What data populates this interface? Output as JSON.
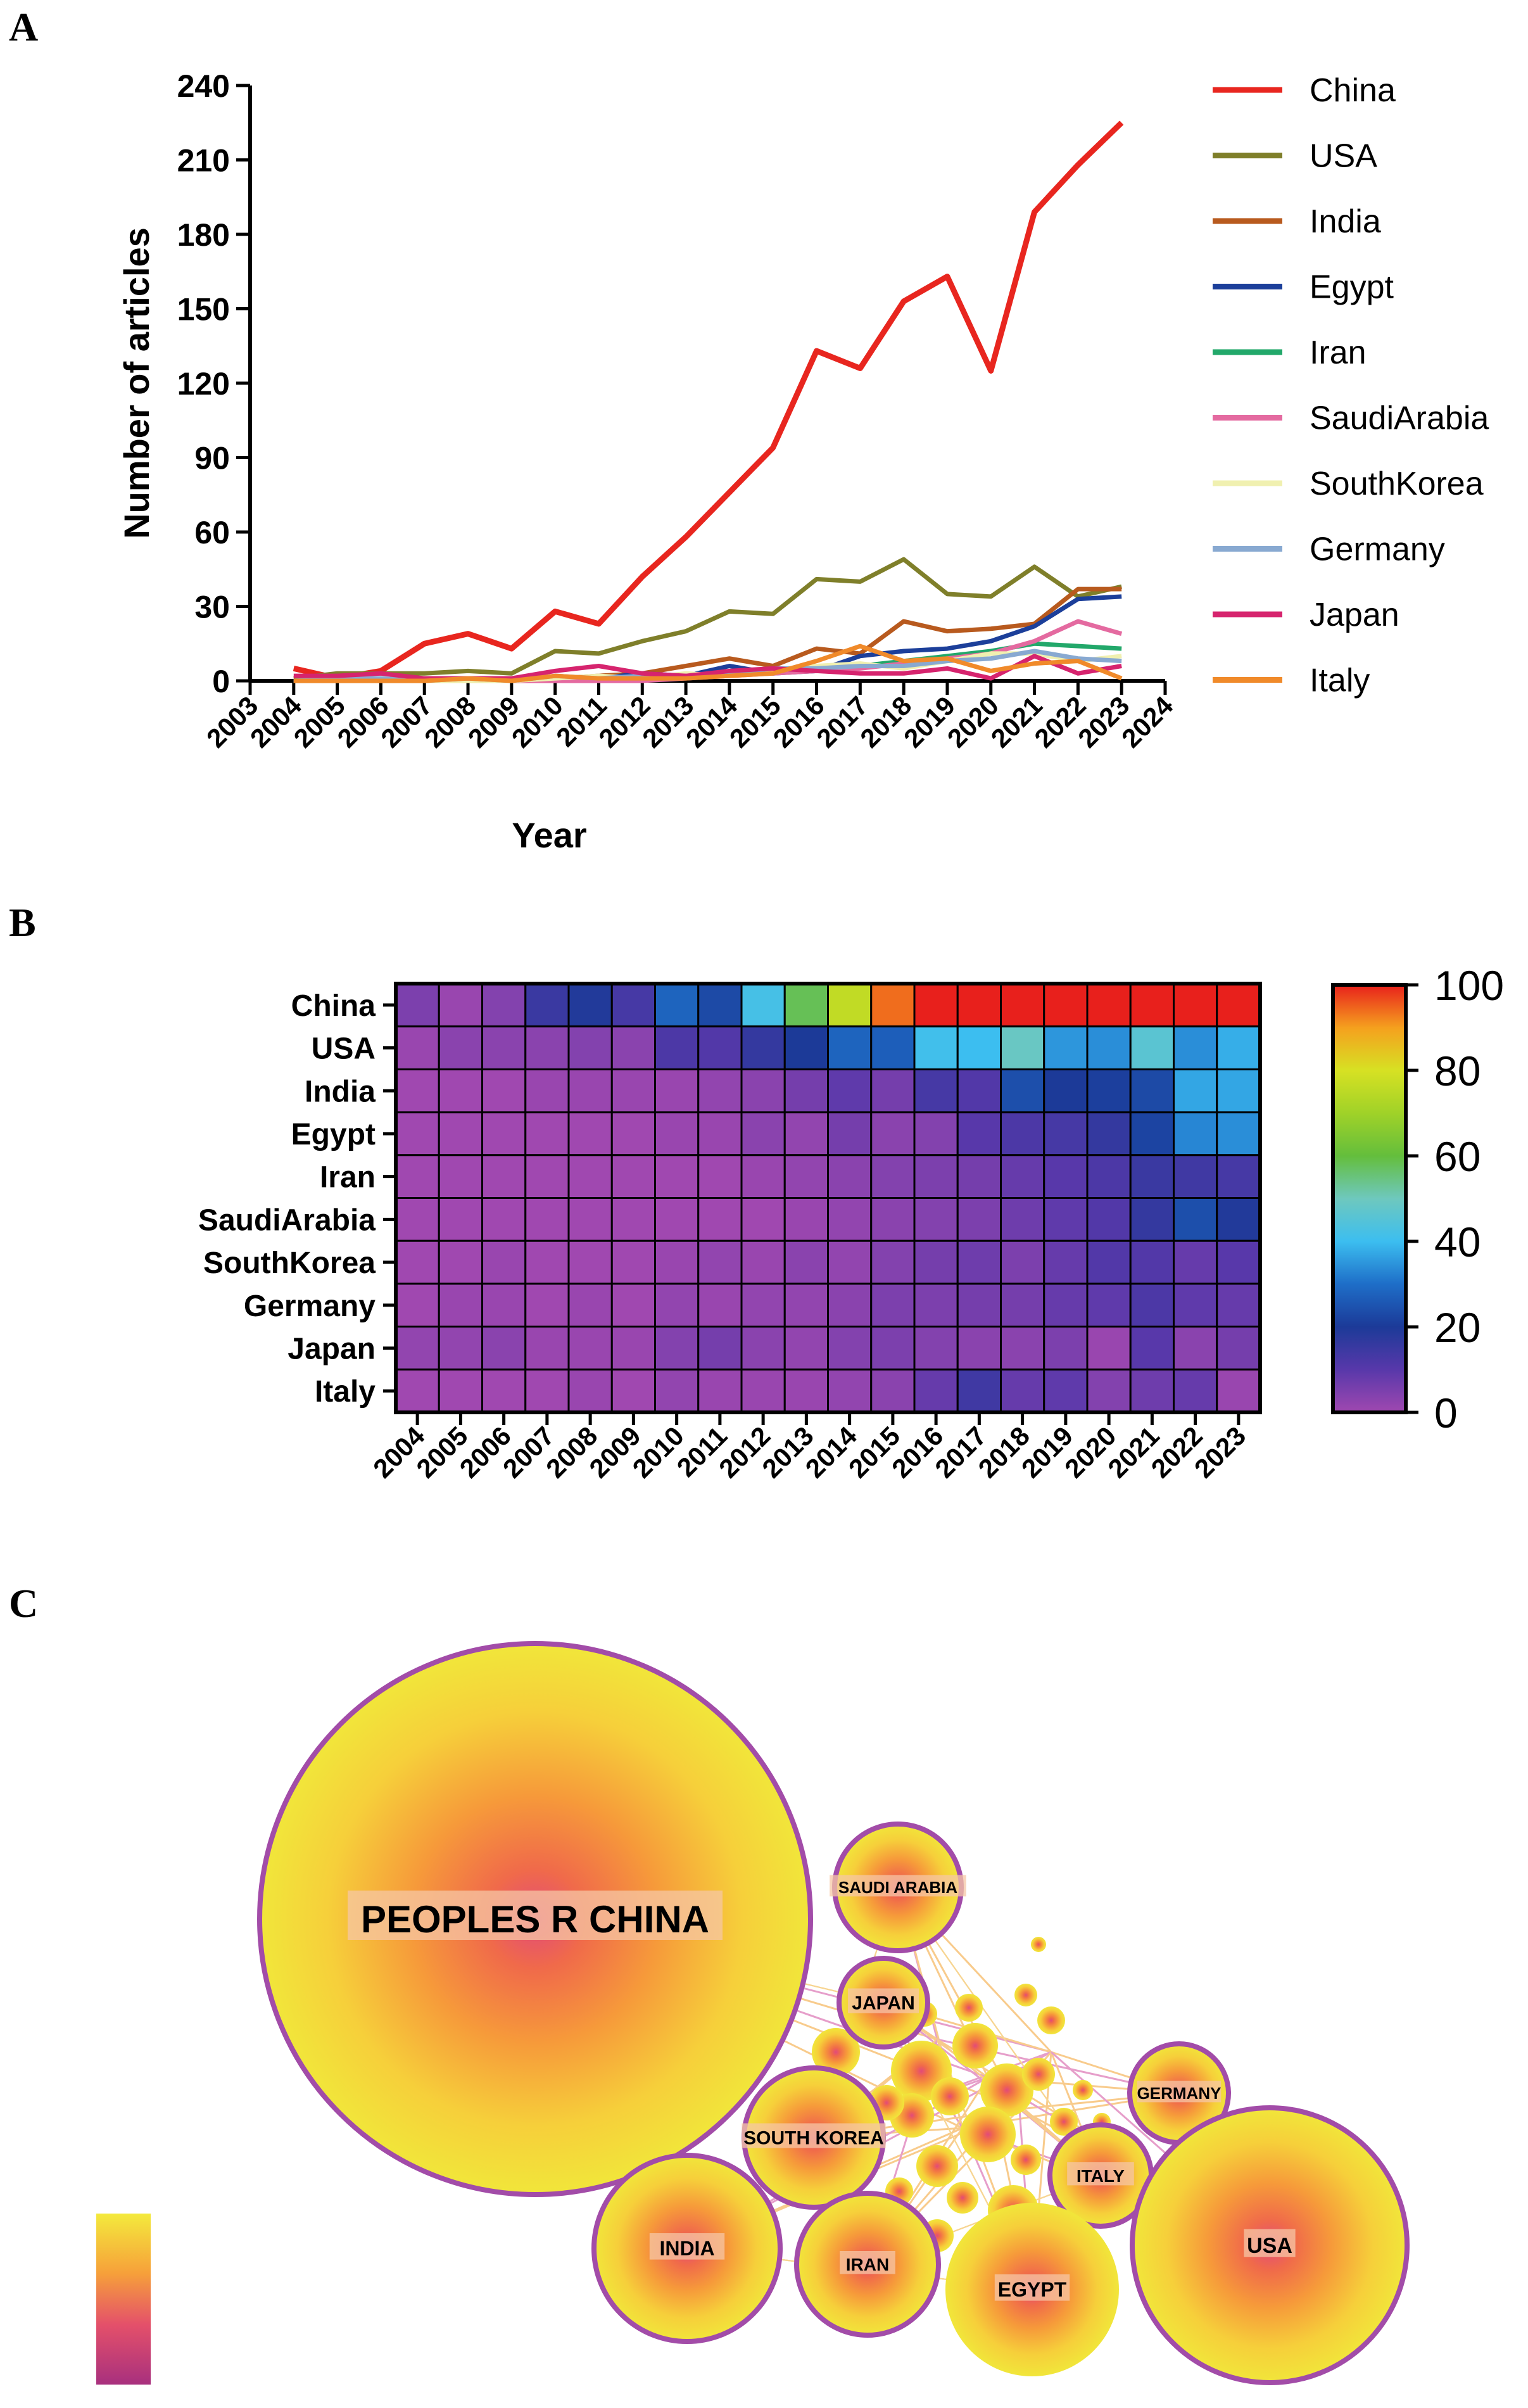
{
  "panels": {
    "a": "A",
    "b": "B",
    "c": "C"
  },
  "chart_data": [
    {
      "type": "line",
      "title": "",
      "xlabel": "Year",
      "ylabel": "Number of articles",
      "x_ticks": [
        "2003",
        "2004",
        "2005",
        "2006",
        "2007",
        "2008",
        "2009",
        "2010",
        "2011",
        "2012",
        "2013",
        "2014",
        "2015",
        "2016",
        "2017",
        "2018",
        "2019",
        "2020",
        "2021",
        "2022",
        "2023",
        "2024"
      ],
      "x": [
        2004,
        2005,
        2006,
        2007,
        2008,
        2009,
        2010,
        2011,
        2012,
        2013,
        2014,
        2015,
        2016,
        2017,
        2018,
        2019,
        2020,
        2021,
        2022,
        2023
      ],
      "xlim": [
        2003,
        2024
      ],
      "y_ticks": [
        0,
        30,
        60,
        90,
        120,
        150,
        180,
        210,
        240
      ],
      "ylim": [
        0,
        240
      ],
      "legend_position": "right",
      "series": [
        {
          "name": "China",
          "color": "#e8261f",
          "values": [
            5,
            1,
            4,
            15,
            19,
            13,
            28,
            23,
            42,
            58,
            76,
            94,
            133,
            126,
            153,
            163,
            125,
            189,
            208,
            225
          ]
        },
        {
          "name": "USA",
          "color": "#7f7f2a",
          "values": [
            1,
            3,
            3,
            3,
            4,
            3,
            12,
            11,
            16,
            20,
            28,
            27,
            41,
            40,
            49,
            35,
            34,
            46,
            34,
            38
          ]
        },
        {
          "name": "India",
          "color": "#b85a1e",
          "values": [
            0,
            0,
            0,
            1,
            1,
            1,
            1,
            2,
            3,
            6,
            9,
            6,
            13,
            11,
            24,
            20,
            21,
            23,
            37,
            37
          ]
        },
        {
          "name": "Egypt",
          "color": "#1c3f9a",
          "values": [
            0,
            0,
            0,
            0,
            0,
            0,
            1,
            1,
            3,
            2,
            6,
            3,
            4,
            10,
            12,
            13,
            16,
            22,
            33,
            34
          ]
        },
        {
          "name": "Iran",
          "color": "#22a86a",
          "values": [
            0,
            0,
            0,
            0,
            0,
            0,
            0,
            0,
            1,
            2,
            3,
            4,
            5,
            6,
            8,
            10,
            12,
            15,
            14,
            13
          ]
        },
        {
          "name": "SaudiArabia",
          "color": "#e46aa0",
          "values": [
            0,
            0,
            0,
            0,
            0,
            0,
            0,
            0,
            0,
            1,
            2,
            3,
            4,
            5,
            7,
            9,
            11,
            16,
            24,
            19
          ]
        },
        {
          "name": "SouthKorea",
          "color": "#f0f0b0",
          "values": [
            0,
            0,
            1,
            0,
            0,
            0,
            1,
            2,
            1,
            3,
            2,
            4,
            6,
            7,
            5,
            8,
            11,
            11,
            8,
            10
          ]
        },
        {
          "name": "Germany",
          "color": "#88a9d1",
          "values": [
            0,
            1,
            1,
            0,
            1,
            0,
            2,
            1,
            2,
            2,
            3,
            5,
            5,
            6,
            6,
            8,
            9,
            12,
            9,
            8
          ]
        },
        {
          "name": "Japan",
          "color": "#d6246e",
          "values": [
            2,
            2,
            3,
            1,
            1,
            1,
            4,
            6,
            3,
            2,
            4,
            5,
            4,
            3,
            3,
            5,
            1,
            10,
            3,
            6
          ]
        },
        {
          "name": "Italy",
          "color": "#f08a2a",
          "values": [
            0,
            0,
            0,
            0,
            1,
            0,
            2,
            1,
            1,
            1,
            2,
            3,
            8,
            14,
            8,
            9,
            4,
            7,
            8,
            1
          ]
        }
      ]
    },
    {
      "type": "heatmap",
      "rows": [
        "China",
        "USA",
        "India",
        "Egypt",
        "Iran",
        "SaudiArabia",
        "SouthKorea",
        "Germany",
        "Japan",
        "Italy"
      ],
      "columns": [
        "2004",
        "2005",
        "2006",
        "2007",
        "2008",
        "2009",
        "2010",
        "2011",
        "2012",
        "2013",
        "2014",
        "2015",
        "2016",
        "2017",
        "2018",
        "2019",
        "2020",
        "2021",
        "2022",
        "2023"
      ],
      "colorbar_ticks": [
        0,
        20,
        40,
        60,
        80,
        100
      ],
      "colorbar_range": [
        0,
        100
      ],
      "matrix": [
        [
          5,
          1,
          4,
          15,
          19,
          13,
          28,
          23,
          42,
          58,
          76,
          94,
          100,
          100,
          100,
          100,
          100,
          100,
          100,
          100
        ],
        [
          1,
          3,
          3,
          3,
          4,
          3,
          12,
          11,
          16,
          20,
          28,
          27,
          41,
          40,
          49,
          35,
          34,
          46,
          34,
          38
        ],
        [
          0,
          0,
          0,
          1,
          1,
          1,
          1,
          2,
          3,
          6,
          9,
          6,
          13,
          11,
          24,
          20,
          21,
          23,
          37,
          37
        ],
        [
          0,
          0,
          0,
          0,
          0,
          0,
          1,
          1,
          3,
          2,
          6,
          3,
          4,
          10,
          12,
          13,
          16,
          22,
          33,
          34
        ],
        [
          0,
          0,
          0,
          0,
          0,
          0,
          0,
          0,
          1,
          2,
          3,
          4,
          5,
          6,
          8,
          10,
          12,
          15,
          14,
          13
        ],
        [
          0,
          0,
          0,
          0,
          0,
          0,
          0,
          0,
          0,
          1,
          2,
          3,
          4,
          5,
          7,
          9,
          11,
          16,
          24,
          19
        ],
        [
          0,
          0,
          1,
          0,
          0,
          0,
          1,
          2,
          1,
          3,
          2,
          4,
          6,
          7,
          5,
          8,
          11,
          11,
          8,
          10
        ],
        [
          0,
          1,
          1,
          0,
          1,
          0,
          2,
          1,
          2,
          2,
          3,
          5,
          5,
          6,
          6,
          8,
          9,
          12,
          9,
          8
        ],
        [
          2,
          2,
          3,
          1,
          1,
          1,
          4,
          6,
          3,
          2,
          4,
          5,
          4,
          3,
          3,
          5,
          1,
          10,
          3,
          6
        ],
        [
          0,
          0,
          0,
          0,
          1,
          0,
          2,
          1,
          1,
          1,
          2,
          3,
          8,
          14,
          8,
          9,
          4,
          7,
          8,
          1
        ]
      ]
    },
    {
      "type": "network",
      "nodes": [
        {
          "label": "PEOPLES R CHINA",
          "size": 225
        },
        {
          "label": "SAUDI ARABIA",
          "size": 19
        },
        {
          "label": "JAPAN",
          "size": 12
        },
        {
          "label": "SOUTH KOREA",
          "size": 15
        },
        {
          "label": "GERMANY",
          "size": 14
        },
        {
          "label": "ITALY",
          "size": 11
        },
        {
          "label": "INDIA",
          "size": 37
        },
        {
          "label": "IRAN",
          "size": 13
        },
        {
          "label": "EGYPT",
          "size": 34
        },
        {
          "label": "USA",
          "size": 38
        }
      ],
      "legend": "year color scale (purple to yellow)"
    }
  ]
}
